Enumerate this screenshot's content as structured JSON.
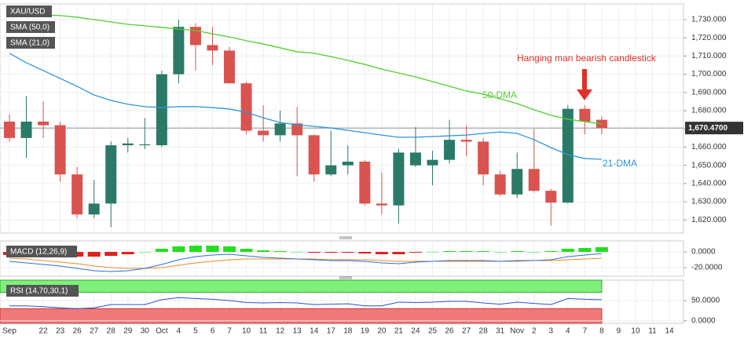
{
  "chart_data": [
    {
      "type": "candlestick",
      "symbol": "XAU/USD",
      "categories": [
        "Sep",
        null,
        "22",
        "23",
        "26",
        "27",
        "28",
        "29",
        "30",
        "Oct",
        "4",
        "5",
        "6",
        "7",
        "10",
        "11",
        "12",
        "13",
        "14",
        "17",
        "18",
        "19",
        "20",
        "21",
        "24",
        "25",
        "26",
        "27",
        "28",
        "31",
        "Nov",
        "2",
        "3",
        "4",
        "7",
        "8",
        "9",
        "10",
        "11",
        "14"
      ],
      "open": [
        1674,
        1665,
        1674,
        1672,
        1645,
        1623,
        1629,
        1661,
        1661,
        1661,
        1700,
        1726,
        1716,
        1713,
        1695,
        1669,
        1666.5,
        1673,
        1666.5,
        1645,
        1650,
        1652,
        1629,
        1628,
        1650,
        1650,
        1653,
        1664,
        1663,
        1645,
        1634,
        1648,
        1636,
        1629.5,
        1681,
        1675,
        null,
        null,
        null,
        null
      ],
      "high": [
        1678,
        1688,
        1685,
        1674,
        1649,
        1642,
        1663,
        1665,
        1676,
        1702,
        1730,
        1728,
        1726,
        1715,
        1696,
        1683,
        1680,
        1682,
        1667,
        1669,
        1661,
        1653,
        1646,
        1659,
        1671,
        1658,
        1675,
        1672,
        1665,
        1647,
        1657,
        1670,
        1637,
        1683,
        1683,
        1677,
        null,
        null,
        null,
        null
      ],
      "low": [
        1663,
        1654,
        1665,
        1641,
        1621,
        1621,
        1616,
        1657,
        1659,
        1660,
        1695,
        1702,
        1705,
        1695,
        1667,
        1663,
        1663,
        1644,
        1641,
        1644,
        1645,
        1628,
        1623,
        1618,
        1649,
        1639,
        1651,
        1655,
        1639,
        1633,
        1632,
        1635,
        1617,
        1629,
        1667,
        1667,
        null,
        null,
        null,
        null
      ],
      "close": [
        1665,
        1674,
        1672,
        1645,
        1623,
        1629,
        1661,
        1662,
        1661.5,
        1700,
        1726,
        1716,
        1713,
        1695,
        1669,
        1666.5,
        1673,
        1666.5,
        1645,
        1650,
        1652,
        1629,
        1628,
        1657,
        1657,
        1653,
        1664,
        1663,
        1645,
        1634,
        1648,
        1636,
        1629.5,
        1681,
        1674,
        1670.5,
        null,
        null,
        null,
        null
      ],
      "up_color": "#2b7a68",
      "down_color": "#d9534f",
      "series": [
        {
          "name": "SMA (50,0)",
          "color": "#4fd12e",
          "values": [
            1733.9,
            1733.4,
            1732.6,
            1732.2,
            1731.3,
            1730,
            1728.7,
            1727.4,
            1726.6,
            1725.7,
            1724.8,
            1724,
            1722.2,
            1720.5,
            1718.4,
            1716.6,
            1714.5,
            1712.3,
            1711.5,
            1709.7,
            1707.6,
            1705.4,
            1702.8,
            1700.7,
            1698.5,
            1696,
            1693.4,
            1690.8,
            1689.1,
            1686.5,
            1683.9,
            1680.5,
            1677.5,
            1675.3,
            1674,
            1672.7,
            null,
            null,
            null,
            null
          ]
        },
        {
          "name": "SMA (21,0)",
          "color": "#2d96dc",
          "values": [
            1711.5,
            1706.3,
            1702,
            1697.7,
            1693.4,
            1688.6,
            1685.6,
            1683.5,
            1682.2,
            1681.7,
            1682.2,
            1682.2,
            1681.7,
            1680.9,
            1679.1,
            1676.1,
            1673.5,
            1672.2,
            1671.4,
            1670.5,
            1669.2,
            1667.9,
            1666.6,
            1665.4,
            1665.4,
            1665.8,
            1666.2,
            1666.6,
            1667.5,
            1668.3,
            1667.5,
            1664.1,
            1659.7,
            1655.9,
            1653.7,
            1653.3,
            null,
            null,
            null,
            null
          ]
        }
      ],
      "ylim": [
        1612.8,
        1738.6
      ],
      "yticks": [
        {
          "value": 1620,
          "label": "1,620.000"
        },
        {
          "value": 1630,
          "label": "1,630.000"
        },
        {
          "value": 1640,
          "label": "1,640.000"
        },
        {
          "value": 1650,
          "label": "1,650.000"
        },
        {
          "value": 1660,
          "label": "1,660.000"
        },
        {
          "value": 1670,
          "label": "1,670.000"
        },
        {
          "value": 1680,
          "label": "1,680.000"
        },
        {
          "value": 1690,
          "label": "1,690.000"
        },
        {
          "value": 1700,
          "label": "1,700.000"
        },
        {
          "value": 1710,
          "label": "1,710.000"
        },
        {
          "value": 1720,
          "label": "1,720.000"
        },
        {
          "value": 1730,
          "label": "1,730.000"
        }
      ],
      "last_price": {
        "value": 1670.47,
        "label": "1,670.4700"
      },
      "grid": true,
      "annotations": [
        "Hanging man bearish candlestick",
        "50-DMA",
        "21-DMA"
      ]
    },
    {
      "type": "macd",
      "name": "MACD (12,26,9)",
      "histogram": [
        -4,
        -5,
        -5,
        -5,
        -6,
        -6,
        -5,
        -3,
        0,
        4,
        7,
        8,
        8,
        7,
        4,
        2,
        1,
        0,
        -1,
        -1,
        -1,
        -2,
        -3,
        -3,
        -1,
        0,
        1,
        1,
        1,
        0,
        1,
        0,
        1,
        4,
        5,
        6,
        null,
        null,
        null,
        null
      ],
      "up_color": "#22e01c",
      "down_color": "#e0201c",
      "macd": [
        -12,
        -14,
        -16,
        -18,
        -21,
        -24,
        -25,
        -24,
        -21,
        -16,
        -10,
        -6,
        -4,
        -3,
        -5,
        -7,
        -8,
        -9,
        -10,
        -11,
        -11,
        -12,
        -14,
        -15,
        -13,
        -12,
        -11,
        -11,
        -11,
        -12,
        -11,
        -11,
        -10,
        -6,
        -4,
        -2,
        null,
        null,
        null,
        null
      ],
      "macd_color": "#2d6fdc",
      "signal": [
        -8,
        -9,
        -11,
        -13,
        -15,
        -18,
        -20,
        -21,
        -21,
        -20,
        -17,
        -14,
        -12,
        -10,
        -9,
        -9,
        -9,
        -9,
        -9,
        -10,
        -10,
        -10,
        -11,
        -12,
        -12,
        -12,
        -12,
        -12,
        -12,
        -12,
        -12,
        -11,
        -11,
        -10,
        -9,
        -8,
        null,
        null,
        null,
        null
      ],
      "signal_color": "#f08a24",
      "ylim": [
        -31,
        14
      ],
      "yticks": [
        {
          "value": 0,
          "label": "0.0000"
        },
        {
          "value": -20,
          "label": "-20.0000"
        }
      ]
    },
    {
      "type": "rsi",
      "name": "RSI (14,70,30,1)",
      "values": [
        37,
        37,
        35,
        32,
        30,
        32,
        40,
        40,
        40,
        52,
        57,
        55,
        53,
        50,
        45,
        44,
        45,
        44,
        40,
        41,
        42,
        37,
        37,
        46,
        45,
        46,
        48,
        48,
        44,
        41,
        46,
        43,
        40,
        55,
        53,
        52,
        null,
        null,
        null,
        null
      ],
      "color": "#2d4fdc",
      "overbought": 70,
      "oversold": 30,
      "overbought_color": "#7ef07a",
      "oversold_color": "#f07a7a",
      "ylim": [
        -6,
        100
      ],
      "yticks": [
        {
          "value": 50,
          "label": "50.0000"
        },
        {
          "value": 0,
          "label": "0.0000"
        }
      ]
    }
  ]
}
